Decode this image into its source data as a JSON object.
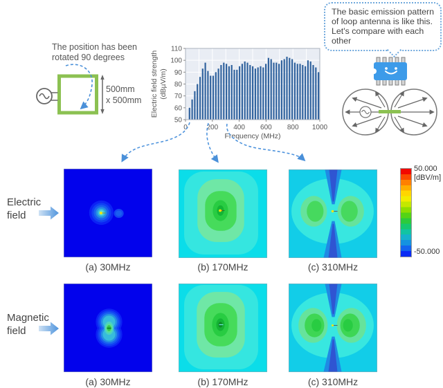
{
  "antenna": {
    "note_line1": "The position has been",
    "note_line2": "rotated 90 degrees",
    "size_line1": "500mm",
    "size_line2": "x 500mm"
  },
  "chart_data": {
    "type": "bar",
    "title": "",
    "ylabel_line1": "Electric field strength",
    "ylabel_line2": "(dBµV/m)",
    "xlabel": "Frequency (MHz)",
    "ylim": [
      50,
      110
    ],
    "yticks": [
      50,
      60,
      70,
      80,
      90,
      100,
      110
    ],
    "xlim": [
      0,
      1000
    ],
    "xticks": [
      0,
      200,
      400,
      600,
      800,
      1000
    ],
    "x_start_mhz": 30,
    "x_step_mhz": 19.6,
    "values": [
      60,
      67,
      74,
      80,
      86,
      93,
      98,
      91,
      87,
      87,
      90,
      93,
      96,
      98,
      97,
      95,
      96,
      92,
      92,
      95,
      97,
      99,
      98,
      96,
      95,
      93,
      94,
      95,
      94,
      97,
      102,
      101,
      98,
      98,
      97,
      100,
      101,
      103,
      102,
      101,
      98,
      97,
      97,
      96,
      95,
      100,
      99,
      96,
      94,
      90
    ],
    "grid": true,
    "legend": "none",
    "bar_color": "#31639E",
    "plot_bg": "#E9EDF4"
  },
  "bubble": {
    "lines": [
      "The basic emission pattern",
      "of loop antenna is like this.",
      "Let's compare with each",
      "other"
    ]
  },
  "rows": [
    {
      "id": "electric",
      "label_line1": "Electric",
      "label_line2": "field",
      "captions": [
        "(a) 30MHz",
        "(b) 170MHz",
        "(c) 310MHz"
      ]
    },
    {
      "id": "magnetic",
      "label_line1": "Magnetic",
      "label_line2": "field",
      "captions": [
        "(a) 30MHz",
        "(b) 170MHz",
        "(c) 310MHz"
      ]
    }
  ],
  "colorbar": {
    "max_label": "50.000",
    "unit_label": "[dBV/m]",
    "min_label": "-50.000",
    "top_color": "#f20800",
    "bottom_color": "#0b2cf4"
  },
  "colors": {
    "accent_blue": "#4A90D9",
    "loop_green": "#8CC152",
    "chip_blue": "#3D9BE9",
    "text_gray": "#555555"
  },
  "icons": {
    "ac_source": "sine-wave-source",
    "chip": "smiling-chip",
    "row_arrow": "right-arrow",
    "rotation_arrow": "dashed-curved-arrow"
  }
}
